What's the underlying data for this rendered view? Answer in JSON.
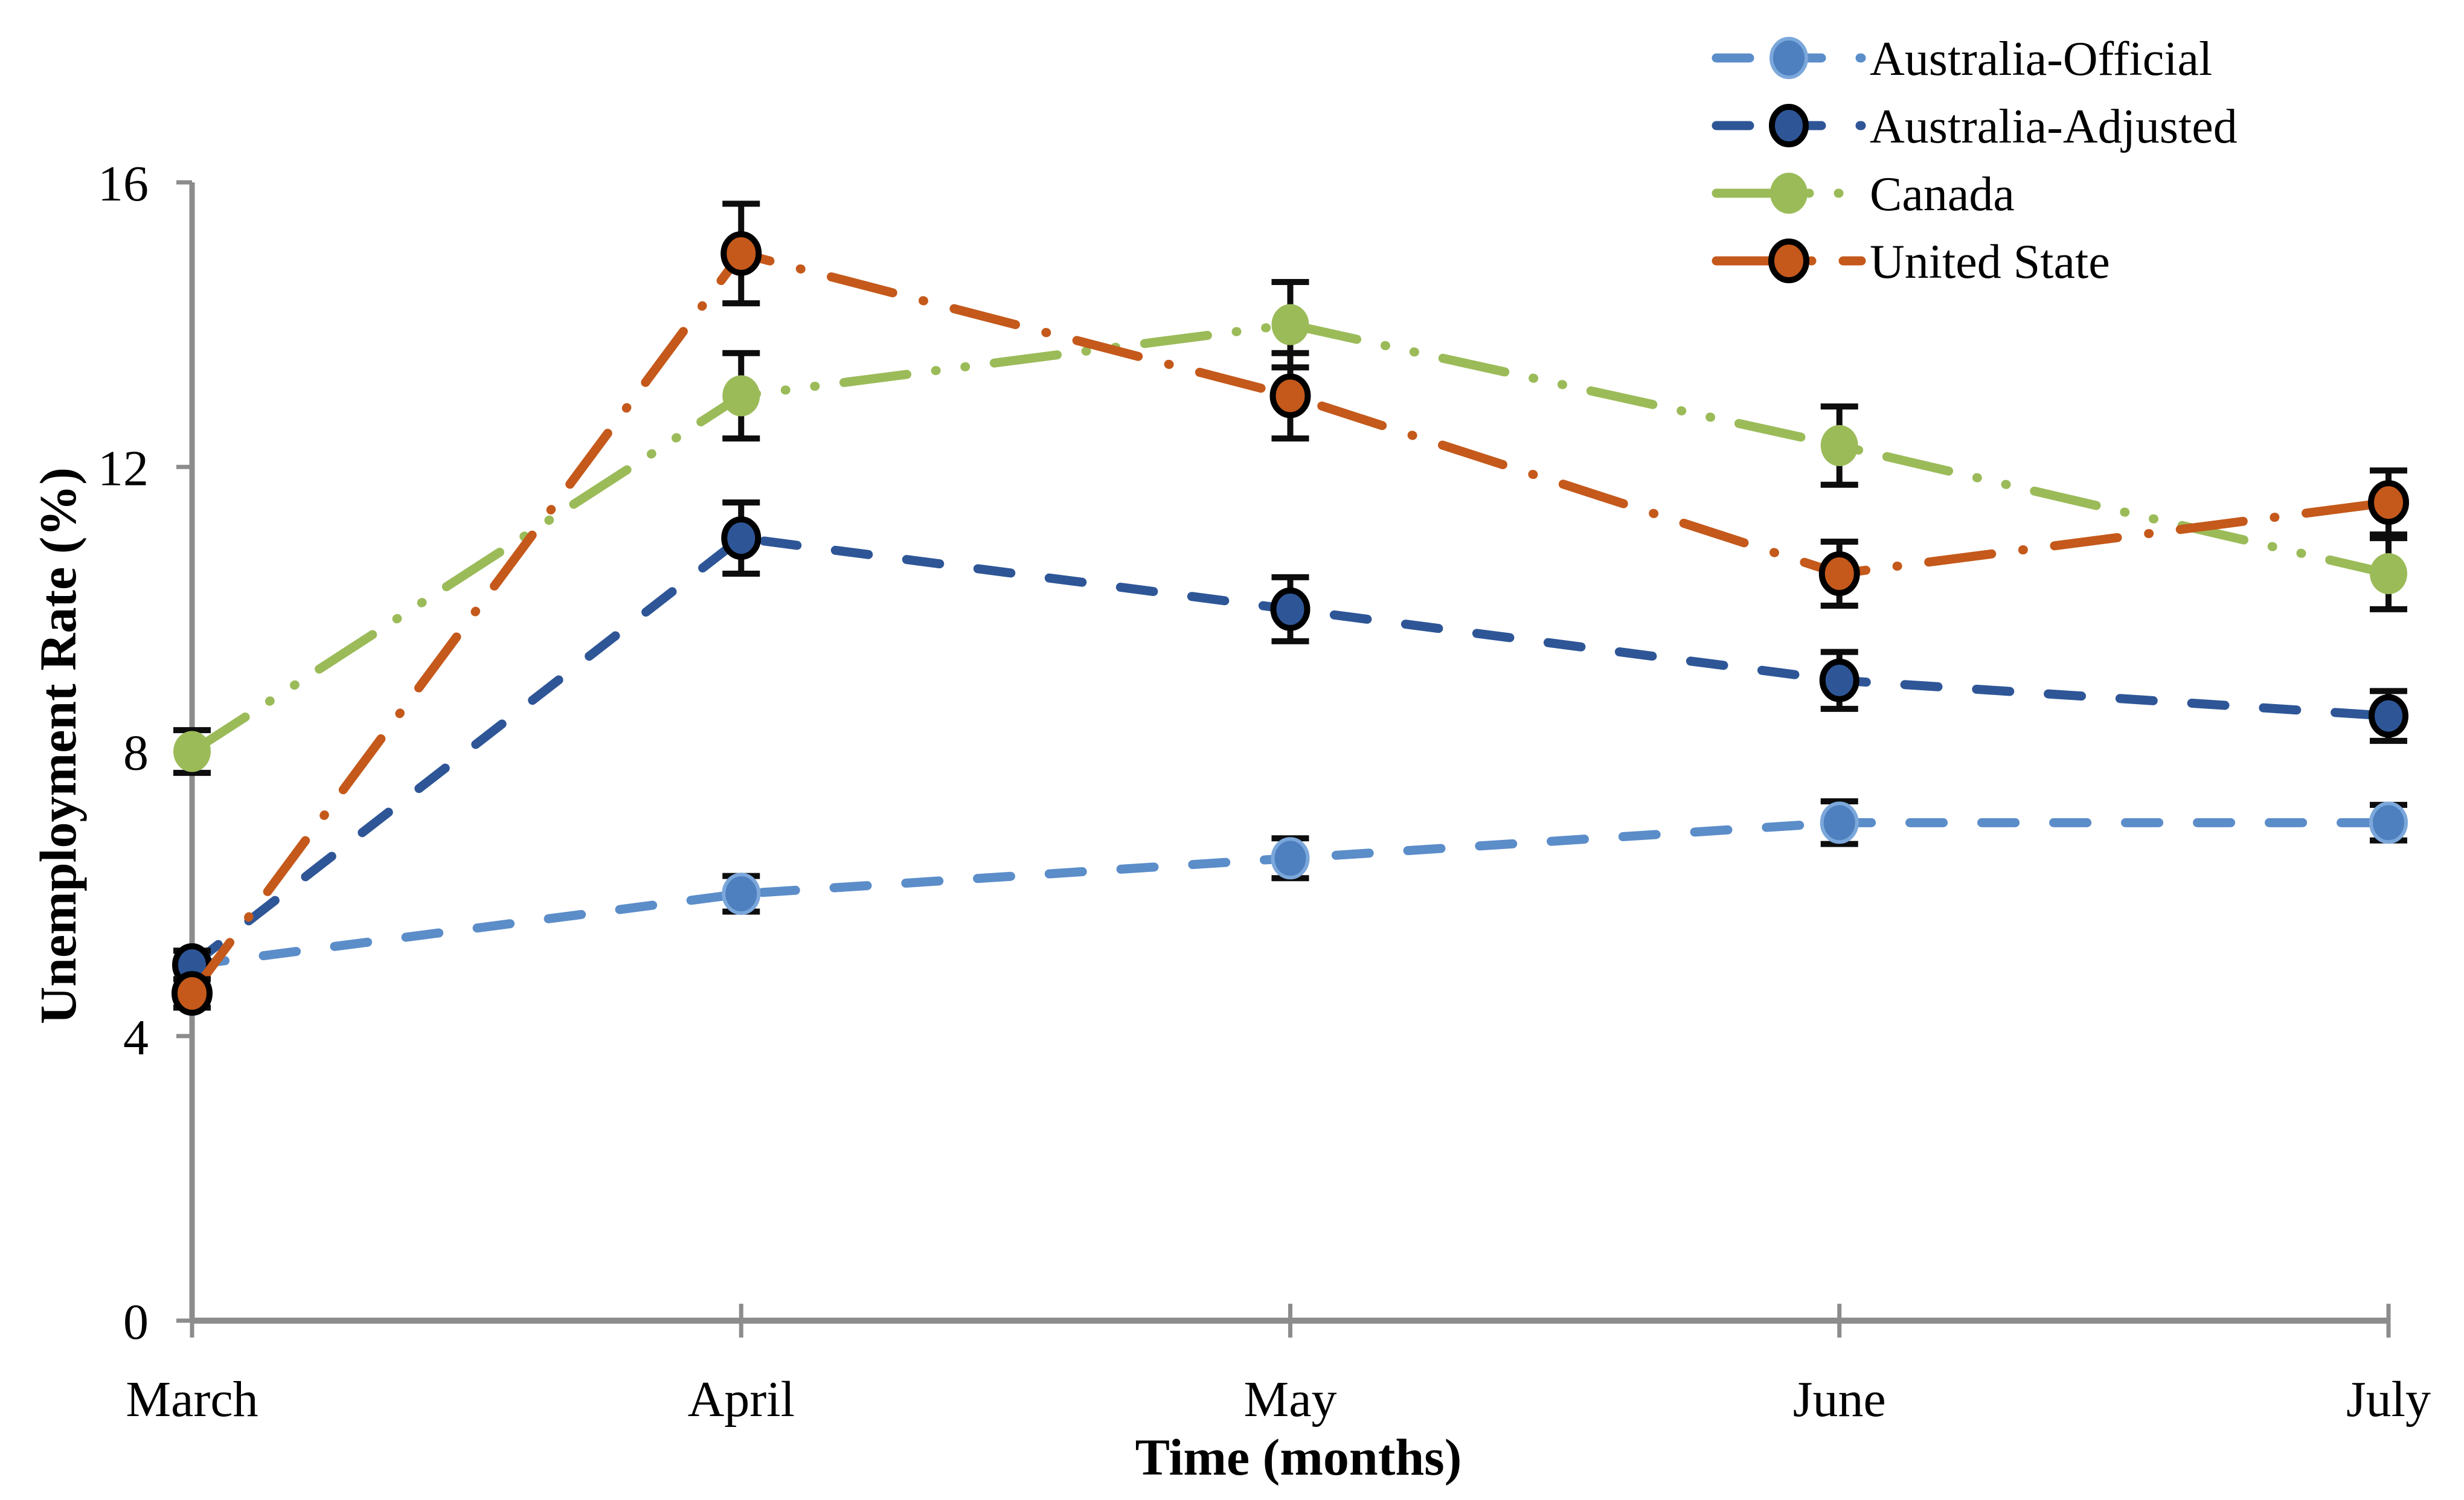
{
  "chart_data": {
    "type": "line",
    "title": "",
    "xlabel": "Time (months)",
    "ylabel": "Unemployment Rate (%)",
    "categories": [
      "March",
      "April",
      "May",
      "June",
      "July"
    ],
    "y_ticks": [
      0,
      4,
      8,
      12,
      16
    ],
    "ylim": [
      0,
      16
    ],
    "grid": false,
    "legend_position": "top-right",
    "axis_color": "#8C8C8C",
    "error_bar_color": "#0D0D0D",
    "series": [
      {
        "name": "Australia-Official",
        "dash": "dash",
        "color": "#5B8DC9",
        "marker_fill": "#4E80BF",
        "marker_stroke": "#7BA7DB",
        "marker_stroke_width": 6,
        "marker_size": 29,
        "values": [
          5.0,
          6.0,
          6.5,
          7.0,
          7.0
        ],
        "errors": [
          0.2,
          0.25,
          0.28,
          0.3,
          0.25
        ]
      },
      {
        "name": "Australia-Adjusted",
        "dash": "dash",
        "color": "#2E5697",
        "marker_fill": "#2E5697",
        "marker_stroke": "#000000",
        "marker_stroke_width": 10,
        "marker_size": 28,
        "values": [
          5.0,
          11.0,
          10.0,
          9.0,
          8.5
        ],
        "errors": [
          0.2,
          0.5,
          0.45,
          0.4,
          0.35
        ]
      },
      {
        "name": "Canada",
        "dash": "dash-dot-dot",
        "color": "#9BBB59",
        "marker_fill": "#9BBB59",
        "marker_stroke": "none",
        "marker_stroke_width": 0,
        "marker_size": 31,
        "values": [
          8.0,
          13.0,
          14.0,
          12.3,
          10.5
        ],
        "errors": [
          0.3,
          0.6,
          0.6,
          0.55,
          0.5
        ]
      },
      {
        "name": "United State",
        "dash": "dash-dot",
        "color": "#C4591B",
        "marker_fill": "#C4591B",
        "marker_stroke": "#000000",
        "marker_stroke_width": 10,
        "marker_size": 29,
        "values": [
          4.6,
          15.0,
          13.0,
          10.5,
          11.5
        ],
        "errors": [
          0.2,
          0.7,
          0.6,
          0.45,
          0.45
        ]
      }
    ]
  }
}
